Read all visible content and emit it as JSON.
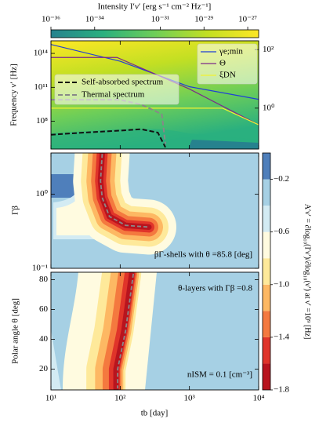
{
  "chart_data": [
    {
      "type": "colorbar",
      "label": "Intensity I′ν′ [erg s⁻¹ cm⁻² Hz⁻¹]",
      "scale": "log",
      "lim": [
        1e-36,
        3.16e-27
      ],
      "ticks": [
        {
          "value": 1e-36,
          "label": "10⁻³⁶"
        },
        {
          "value": 1e-34,
          "label": "10⁻³⁴"
        },
        {
          "value": 1e-31,
          "label": "10⁻³¹"
        },
        {
          "value": 1e-29,
          "label": "10⁻²⁹"
        },
        {
          "value": 1e-27,
          "label": "10⁻²⁷"
        }
      ],
      "colors": [
        "#26828e",
        "#2ab07f",
        "#6ece58",
        "#c2df23",
        "#fde725"
      ]
    },
    {
      "type": "line",
      "ylabel": "Frequency ν′ [Hz]",
      "yscale": "log",
      "ylim": [
        350000,
        1300000000000000.0
      ],
      "yticks": [
        {
          "value": 100000000,
          "label": "10⁸"
        },
        {
          "value": 100000000000,
          "label": "10¹¹"
        },
        {
          "value": 100000000000000,
          "label": "10¹⁴"
        }
      ],
      "y2scale": "log",
      "y2lim": [
        0.04,
        200
      ],
      "y2ticks": [
        {
          "value": 1,
          "label": "10⁰"
        },
        {
          "value": 100,
          "label": "10²"
        }
      ],
      "series": [
        {
          "name": "γe;min",
          "color": "#1f3fd6",
          "axis": "y2",
          "legend": "upper right",
          "x": [
            10,
            100,
            1000,
            10000
          ],
          "values": [
            150,
            40,
            5.4,
            2
          ]
        },
        {
          "name": "Θ",
          "color": "#7b2a8a",
          "axis": "y2",
          "legend": "upper right",
          "x": [
            10,
            90,
            1000,
            10000
          ],
          "values": [
            54,
            54,
            4.5,
            0.27
          ]
        },
        {
          "name": "ξDN",
          "color": "#f2f230",
          "axis": "y2",
          "legend": "upper right",
          "x": [
            10,
            3000,
            10000
          ],
          "values": [
            1,
            1,
            0.27
          ]
        },
        {
          "name": "Self-absorbed spectrum",
          "color": "#111111",
          "dash": "6 3",
          "legend": "center left",
          "x": [
            10,
            30,
            100,
            200,
            350,
            450
          ],
          "values": [
            6500000,
            10000000,
            15000000,
            20000000,
            10000000,
            500000
          ]
        },
        {
          "name": "Thermal spectrum",
          "color": "#888888",
          "dash": "6 3",
          "legend": "center left",
          "x": [
            10,
            100,
            200,
            300,
            400,
            450
          ],
          "values": [
            8000000000,
            8000000000,
            3000000000,
            1000000000,
            400000000,
            1000000
          ]
        }
      ]
    },
    {
      "type": "contour",
      "ylabel": "Γβ",
      "yscale": "log",
      "ylim": [
        0.1,
        3.6
      ],
      "yticks": [
        {
          "value": 0.1,
          "label": "10⁻¹"
        },
        {
          "value": 1,
          "label": "10⁰"
        }
      ],
      "annotation": "βΓ-shells with θ =85.8 [deg]",
      "ridge": {
        "x": [
          55,
          52,
          55,
          70,
          120,
          260
        ],
        "y": [
          3.5,
          1.5,
          0.9,
          0.5,
          0.38,
          0.36
        ]
      }
    },
    {
      "type": "contour",
      "ylabel": "Polar angle θ [deg]",
      "ylim": [
        6,
        85
      ],
      "yticks": [
        20,
        40,
        60,
        80
      ],
      "xlabel": "tb [day]",
      "xscale": "log",
      "xlim": [
        10,
        10000
      ],
      "xticks": [
        {
          "value": 10,
          "label": "10¹"
        },
        {
          "value": 100,
          "label": "10²"
        },
        {
          "value": 1000,
          "label": "10³"
        },
        {
          "value": 10000,
          "label": "10⁴"
        }
      ],
      "annotation": "θ-layers with Γβ =0.8",
      "annotation2": "nISM = 0.1 [cm⁻³]",
      "ridge": {
        "x": [
          155,
          120,
          92,
          92
        ],
        "y": [
          84,
          46,
          20,
          7
        ]
      }
    },
    {
      "type": "colorbar",
      "label": "A′ν′ = ∂log₁₀(I′ν′)/∂log₁₀(ν′) at ν′ =10⁹ [Hz]",
      "levels": [
        -1.8,
        -1.6,
        -1.4,
        -1.2,
        -1.0,
        -0.8,
        -0.6,
        -0.4,
        -0.2,
        0
      ],
      "colors": [
        "#b8141e",
        "#e0342a",
        "#f4793f",
        "#fdb863",
        "#fee99a",
        "#fffbe0",
        "#d3ebf3",
        "#a6d0e4",
        "#4f7fbb"
      ],
      "ticks": [
        {
          "value": -0.2,
          "label": "−0.2"
        },
        {
          "value": -0.6,
          "label": "−0.6"
        },
        {
          "value": -1.0,
          "label": "−1.0"
        },
        {
          "value": -1.4,
          "label": "−1.4"
        },
        {
          "value": -1.8,
          "label": "−1.8"
        }
      ]
    }
  ]
}
